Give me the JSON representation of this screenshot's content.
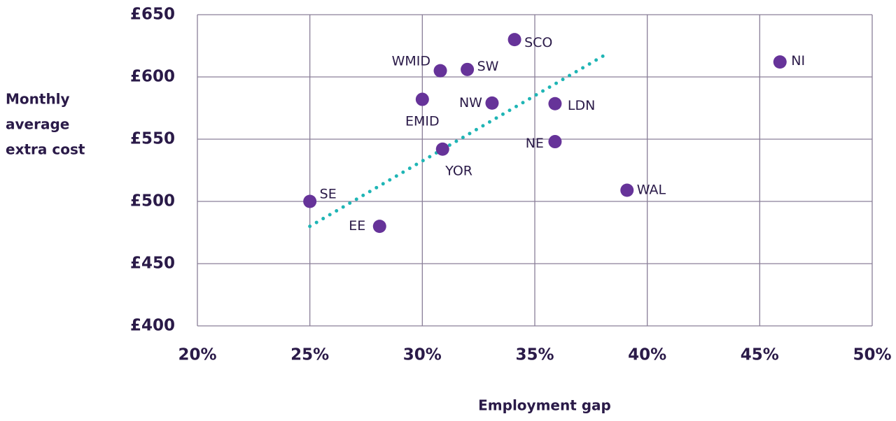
{
  "chart_data": {
    "type": "scatter",
    "xlabel": "Employment gap",
    "ylabel": [
      "Monthly",
      "average",
      "extra cost"
    ],
    "labels": [
      "SE",
      "EE",
      "EMID",
      "WMID",
      "YOR",
      "SW",
      "NW",
      "SCO",
      "LDN",
      "NE",
      "WAL",
      "NI"
    ],
    "x": [
      25,
      28.1,
      30,
      30.8,
      30.9,
      32,
      33.1,
      34.1,
      35.9,
      35.9,
      39.1,
      45.9
    ],
    "y": [
      500,
      480,
      582,
      605,
      542,
      606,
      579,
      630,
      578.5,
      548,
      509,
      612
    ],
    "color": "#663399",
    "trendline": {
      "x": [
        25,
        38.2
      ],
      "y": [
        480,
        618.5
      ],
      "color": "#1fb5b5"
    },
    "xlim": [
      20,
      50
    ],
    "xticks": [
      {
        "value": 20,
        "label": "20%"
      },
      {
        "value": 25,
        "label": "25%"
      },
      {
        "value": 30,
        "label": "30%"
      },
      {
        "value": 35,
        "label": "35%"
      },
      {
        "value": 40,
        "label": "40%"
      },
      {
        "value": 45,
        "label": "45%"
      },
      {
        "value": 50,
        "label": "50%"
      }
    ],
    "ylim": [
      400,
      650
    ],
    "yticks": [
      {
        "value": 400,
        "label": "£400"
      },
      {
        "value": 450,
        "label": "£450"
      },
      {
        "value": 500,
        "label": "£500"
      },
      {
        "value": 550,
        "label": "£550"
      },
      {
        "value": 600,
        "label": "£600"
      },
      {
        "value": 650,
        "label": "£650"
      }
    ],
    "grid": true
  }
}
